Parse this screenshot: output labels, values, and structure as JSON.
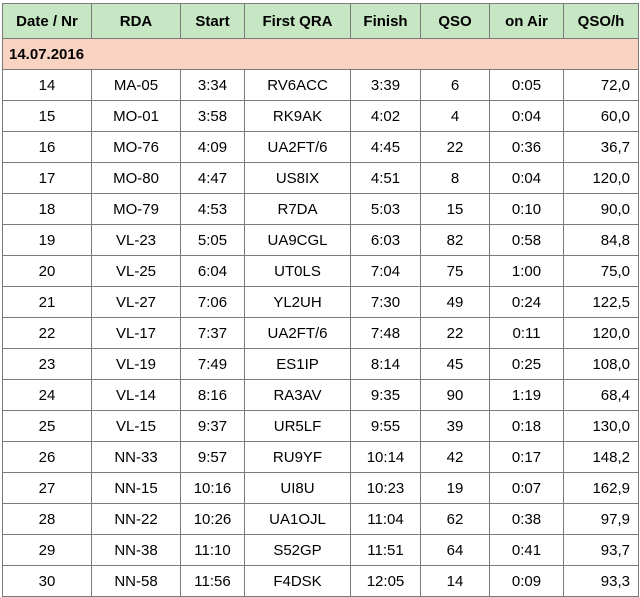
{
  "headers": [
    "Date / Nr",
    "RDA",
    "Start",
    "First QRA",
    "Finish",
    "QSO",
    "on Air",
    "QSO/h"
  ],
  "date": "14.07.2016",
  "rows": [
    [
      "14",
      "MA-05",
      "3:34",
      "RV6ACC",
      "3:39",
      "6",
      "0:05",
      "72,0"
    ],
    [
      "15",
      "MO-01",
      "3:58",
      "RK9AK",
      "4:02",
      "4",
      "0:04",
      "60,0"
    ],
    [
      "16",
      "MO-76",
      "4:09",
      "UA2FT/6",
      "4:45",
      "22",
      "0:36",
      "36,7"
    ],
    [
      "17",
      "MO-80",
      "4:47",
      "US8IX",
      "4:51",
      "8",
      "0:04",
      "120,0"
    ],
    [
      "18",
      "MO-79",
      "4:53",
      "R7DA",
      "5:03",
      "15",
      "0:10",
      "90,0"
    ],
    [
      "19",
      "VL-23",
      "5:05",
      "UA9CGL",
      "6:03",
      "82",
      "0:58",
      "84,8"
    ],
    [
      "20",
      "VL-25",
      "6:04",
      "UT0LS",
      "7:04",
      "75",
      "1:00",
      "75,0"
    ],
    [
      "21",
      "VL-27",
      "7:06",
      "YL2UH",
      "7:30",
      "49",
      "0:24",
      "122,5"
    ],
    [
      "22",
      "VL-17",
      "7:37",
      "UA2FT/6",
      "7:48",
      "22",
      "0:11",
      "120,0"
    ],
    [
      "23",
      "VL-19",
      "7:49",
      "ES1IP",
      "8:14",
      "45",
      "0:25",
      "108,0"
    ],
    [
      "24",
      "VL-14",
      "8:16",
      "RA3AV",
      "9:35",
      "90",
      "1:19",
      "68,4"
    ],
    [
      "25",
      "VL-15",
      "9:37",
      "UR5LF",
      "9:55",
      "39",
      "0:18",
      "130,0"
    ],
    [
      "26",
      "NN-33",
      "9:57",
      "RU9YF",
      "10:14",
      "42",
      "0:17",
      "148,2"
    ],
    [
      "27",
      "NN-15",
      "10:16",
      "UI8U",
      "10:23",
      "19",
      "0:07",
      "162,9"
    ],
    [
      "28",
      "NN-22",
      "10:26",
      "UA1OJL",
      "11:04",
      "62",
      "0:38",
      "97,9"
    ],
    [
      "29",
      "NN-38",
      "11:10",
      "S52GP",
      "11:51",
      "64",
      "0:41",
      "93,7"
    ],
    [
      "30",
      "NN-58",
      "11:56",
      "F4DSK",
      "12:05",
      "14",
      "0:09",
      "93,3"
    ]
  ],
  "colors": {
    "header_bg": "#c6e6c4",
    "date_bg": "#f9d3c2",
    "border": "#7a7a7a"
  }
}
